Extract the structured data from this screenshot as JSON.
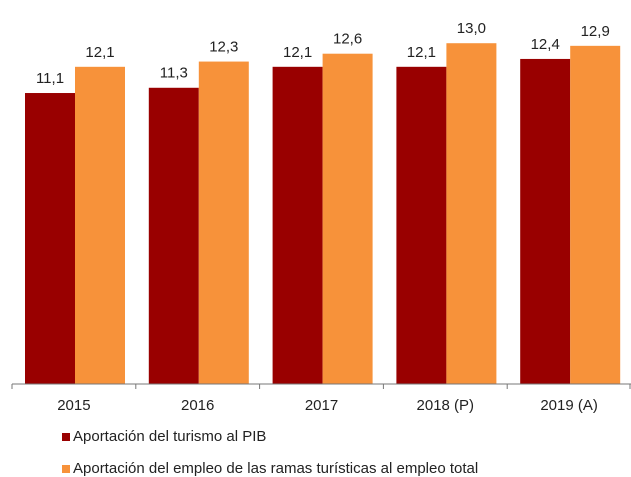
{
  "chart_data": {
    "type": "bar",
    "categories": [
      "2015",
      "2016",
      "2017",
      "2018 (P)",
      "2019 (A)"
    ],
    "series": [
      {
        "name": "Aportación del turismo al PIB",
        "color": "#990000",
        "values": [
          11.1,
          11.3,
          12.1,
          12.1,
          12.4
        ],
        "value_labels": [
          "11,1",
          "11,3",
          "12,1",
          "12,1",
          "12,4"
        ]
      },
      {
        "name": "Aportación del empleo de las ramas turísticas al empleo total",
        "color": "#F7923A",
        "values": [
          12.1,
          12.3,
          12.6,
          13.0,
          12.9
        ],
        "value_labels": [
          "12,1",
          "12,3",
          "12,6",
          "13,0",
          "12,9"
        ]
      }
    ],
    "ylim": [
      0,
      14
    ],
    "legend": "bottom-left"
  }
}
